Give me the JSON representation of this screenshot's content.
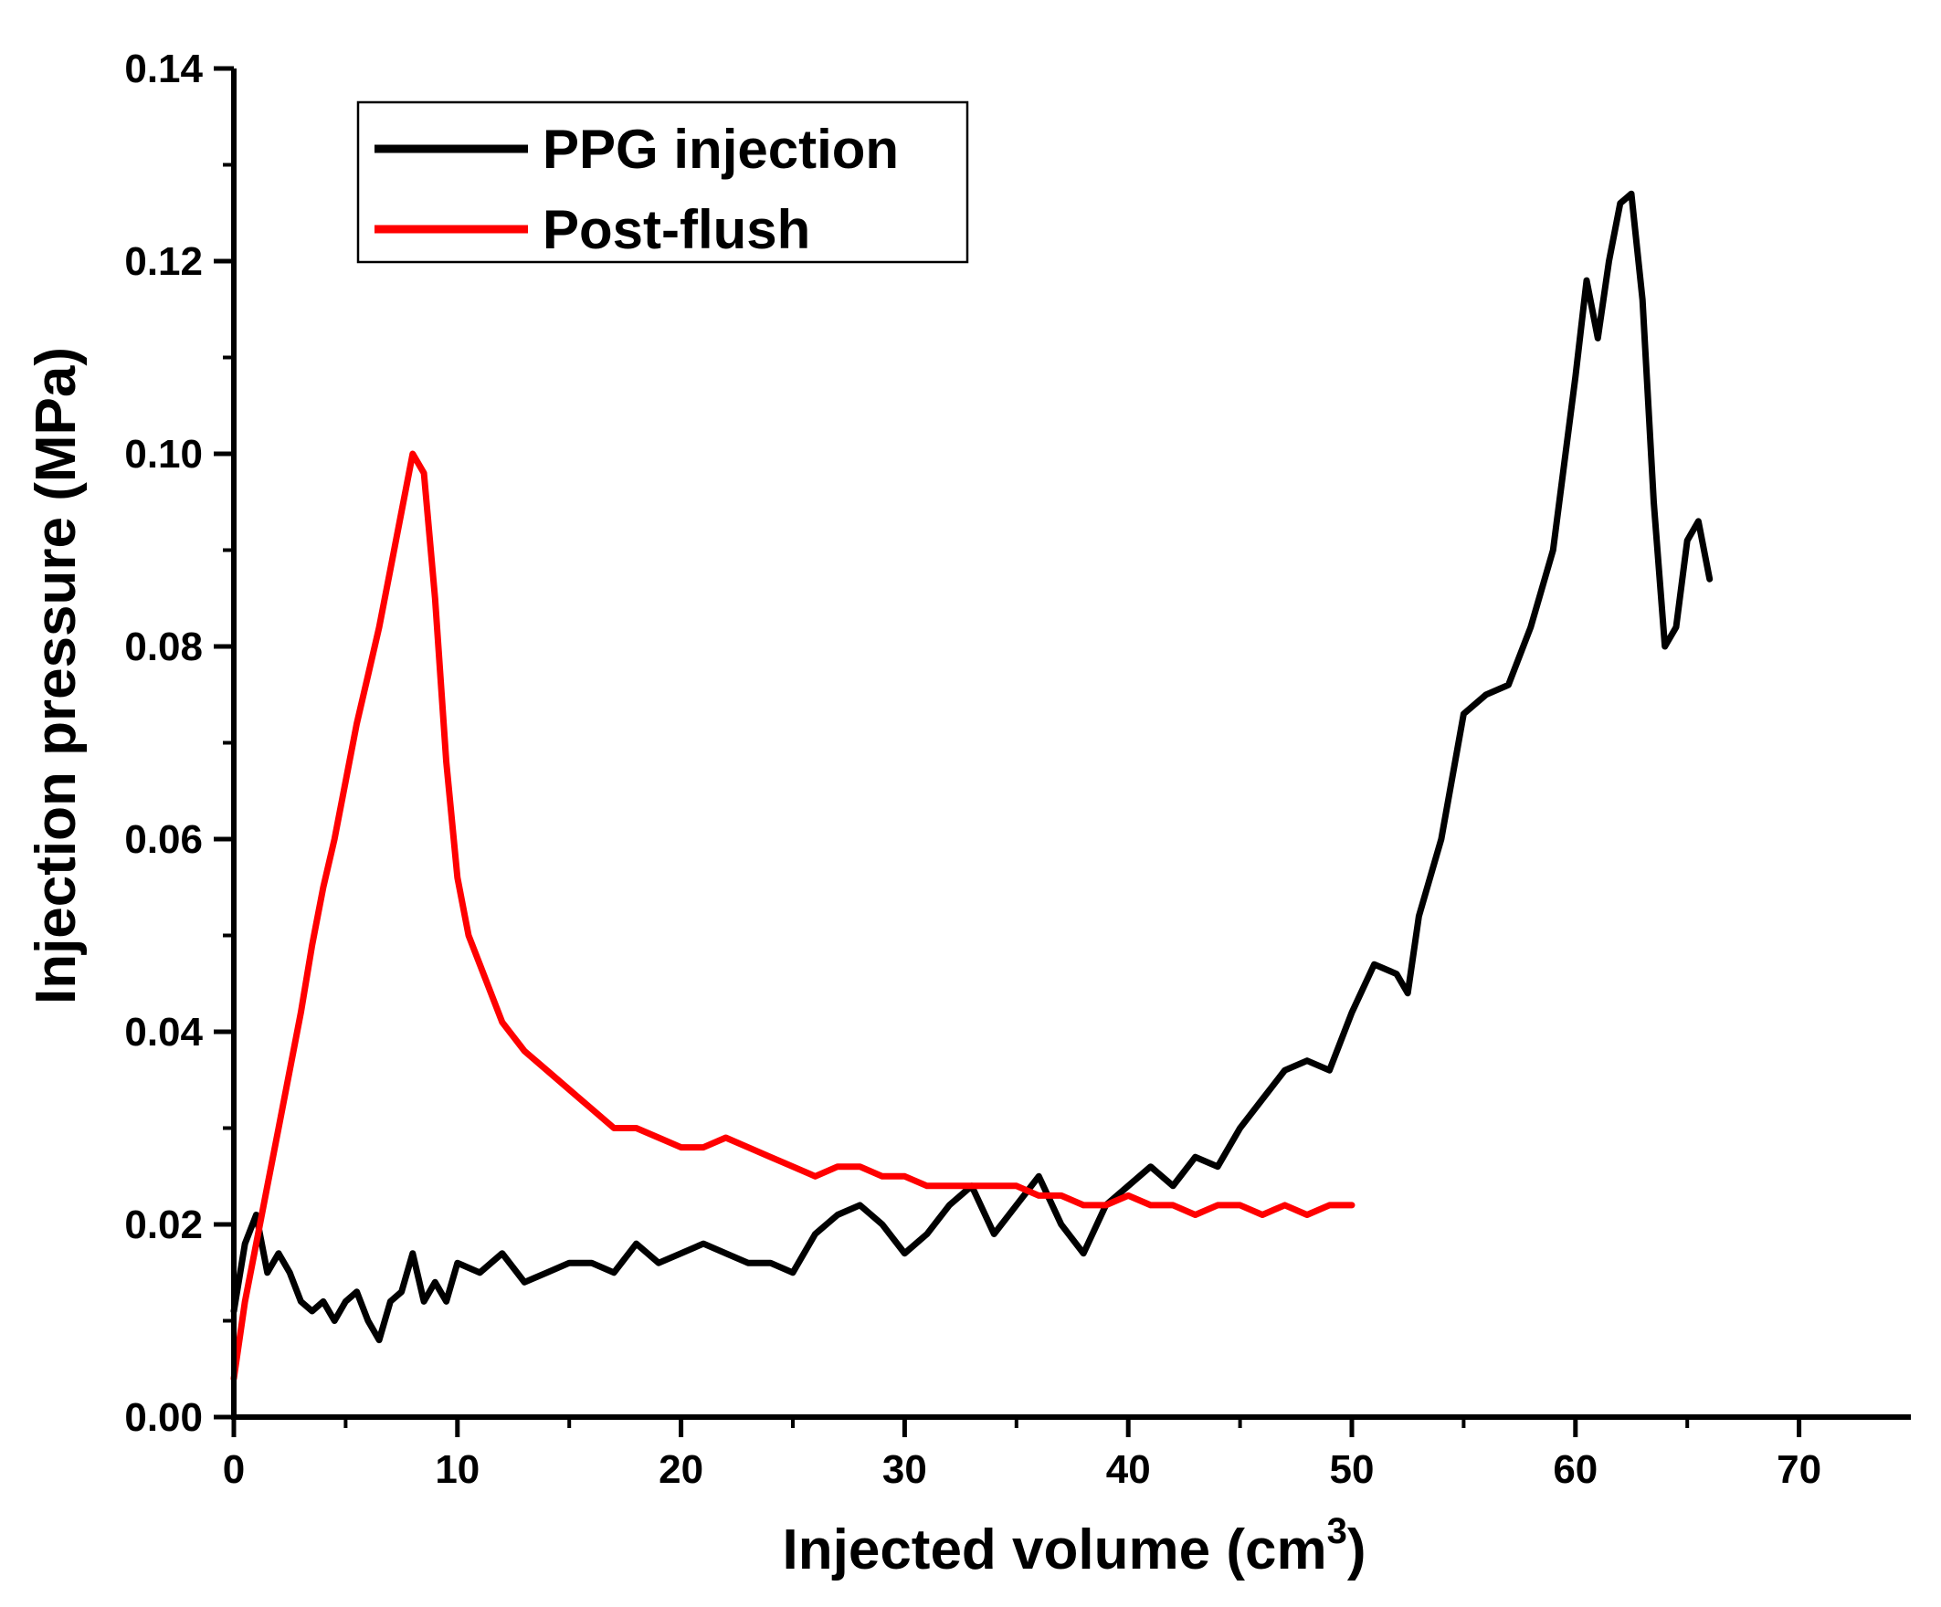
{
  "chart_data": {
    "type": "line",
    "title": "",
    "xlabel": "Injected volume (cm",
    "xlabel_superscript": "3",
    "xlabel_close": ")",
    "ylabel": "Injection pressure (MPa)",
    "xlim": [
      0,
      75
    ],
    "ylim": [
      0,
      0.14
    ],
    "xticks": [
      0,
      10,
      20,
      30,
      40,
      50,
      60,
      70
    ],
    "xtick_labels": [
      "0",
      "10",
      "20",
      "30",
      "40",
      "50",
      "60",
      "70"
    ],
    "yticks": [
      0,
      0.02,
      0.04,
      0.06,
      0.08,
      0.1,
      0.12,
      0.14
    ],
    "ytick_labels": [
      "0.00",
      "0.02",
      "0.04",
      "0.06",
      "0.08",
      "0.10",
      "0.12",
      "0.14"
    ],
    "legend_position": "top-left",
    "series": [
      {
        "name": "PPG injection",
        "color": "#000000",
        "x": [
          0,
          0.5,
          1,
          1.5,
          2,
          2.5,
          3,
          3.5,
          4,
          4.5,
          5,
          5.5,
          6,
          6.5,
          7,
          7.5,
          8,
          8.5,
          9,
          9.5,
          10,
          11,
          12,
          13,
          14,
          15,
          16,
          17,
          18,
          19,
          20,
          21,
          22,
          23,
          24,
          25,
          26,
          27,
          28,
          29,
          30,
          31,
          32,
          33,
          34,
          35,
          36,
          37,
          38,
          39,
          40,
          41,
          42,
          43,
          44,
          45,
          46,
          47,
          48,
          49,
          50,
          51,
          52,
          52.5,
          53,
          54,
          55,
          56,
          57,
          58,
          59,
          60,
          60.5,
          61,
          61.5,
          62,
          62.5,
          63,
          63.5,
          64,
          64.5,
          65,
          65.5,
          66
        ],
        "y": [
          0.011,
          0.018,
          0.021,
          0.015,
          0.017,
          0.015,
          0.012,
          0.011,
          0.012,
          0.01,
          0.012,
          0.013,
          0.01,
          0.008,
          0.012,
          0.013,
          0.017,
          0.012,
          0.014,
          0.012,
          0.016,
          0.015,
          0.017,
          0.014,
          0.015,
          0.016,
          0.016,
          0.015,
          0.018,
          0.016,
          0.017,
          0.018,
          0.017,
          0.016,
          0.016,
          0.015,
          0.019,
          0.021,
          0.022,
          0.02,
          0.017,
          0.019,
          0.022,
          0.024,
          0.019,
          0.022,
          0.025,
          0.02,
          0.017,
          0.022,
          0.024,
          0.026,
          0.024,
          0.027,
          0.026,
          0.03,
          0.033,
          0.036,
          0.037,
          0.036,
          0.042,
          0.047,
          0.046,
          0.044,
          0.052,
          0.06,
          0.073,
          0.075,
          0.076,
          0.082,
          0.09,
          0.108,
          0.118,
          0.112,
          0.12,
          0.126,
          0.127,
          0.116,
          0.095,
          0.08,
          0.082,
          0.091,
          0.093,
          0.087
        ]
      },
      {
        "name": "Post-flush",
        "color": "#ff0000",
        "x": [
          0,
          0.5,
          1,
          1.5,
          2,
          2.5,
          3,
          3.5,
          4,
          4.5,
          5,
          5.5,
          6,
          6.5,
          7,
          7.5,
          8,
          8.5,
          9,
          9.5,
          10,
          10.5,
          11,
          12,
          13,
          14,
          15,
          16,
          17,
          18,
          19,
          20,
          21,
          22,
          23,
          24,
          25,
          26,
          27,
          28,
          29,
          30,
          31,
          32,
          33,
          34,
          35,
          36,
          37,
          38,
          39,
          40,
          41,
          42,
          43,
          44,
          45,
          46,
          47,
          48,
          49,
          50
        ],
        "y": [
          0.004,
          0.012,
          0.018,
          0.024,
          0.03,
          0.036,
          0.042,
          0.049,
          0.055,
          0.06,
          0.066,
          0.072,
          0.077,
          0.082,
          0.088,
          0.094,
          0.1,
          0.098,
          0.085,
          0.068,
          0.056,
          0.05,
          0.047,
          0.041,
          0.038,
          0.036,
          0.034,
          0.032,
          0.03,
          0.03,
          0.029,
          0.028,
          0.028,
          0.029,
          0.028,
          0.027,
          0.026,
          0.025,
          0.026,
          0.026,
          0.025,
          0.025,
          0.024,
          0.024,
          0.024,
          0.024,
          0.024,
          0.023,
          0.023,
          0.022,
          0.022,
          0.023,
          0.022,
          0.022,
          0.021,
          0.022,
          0.022,
          0.021,
          0.022,
          0.021,
          0.022,
          0.022
        ]
      }
    ]
  }
}
